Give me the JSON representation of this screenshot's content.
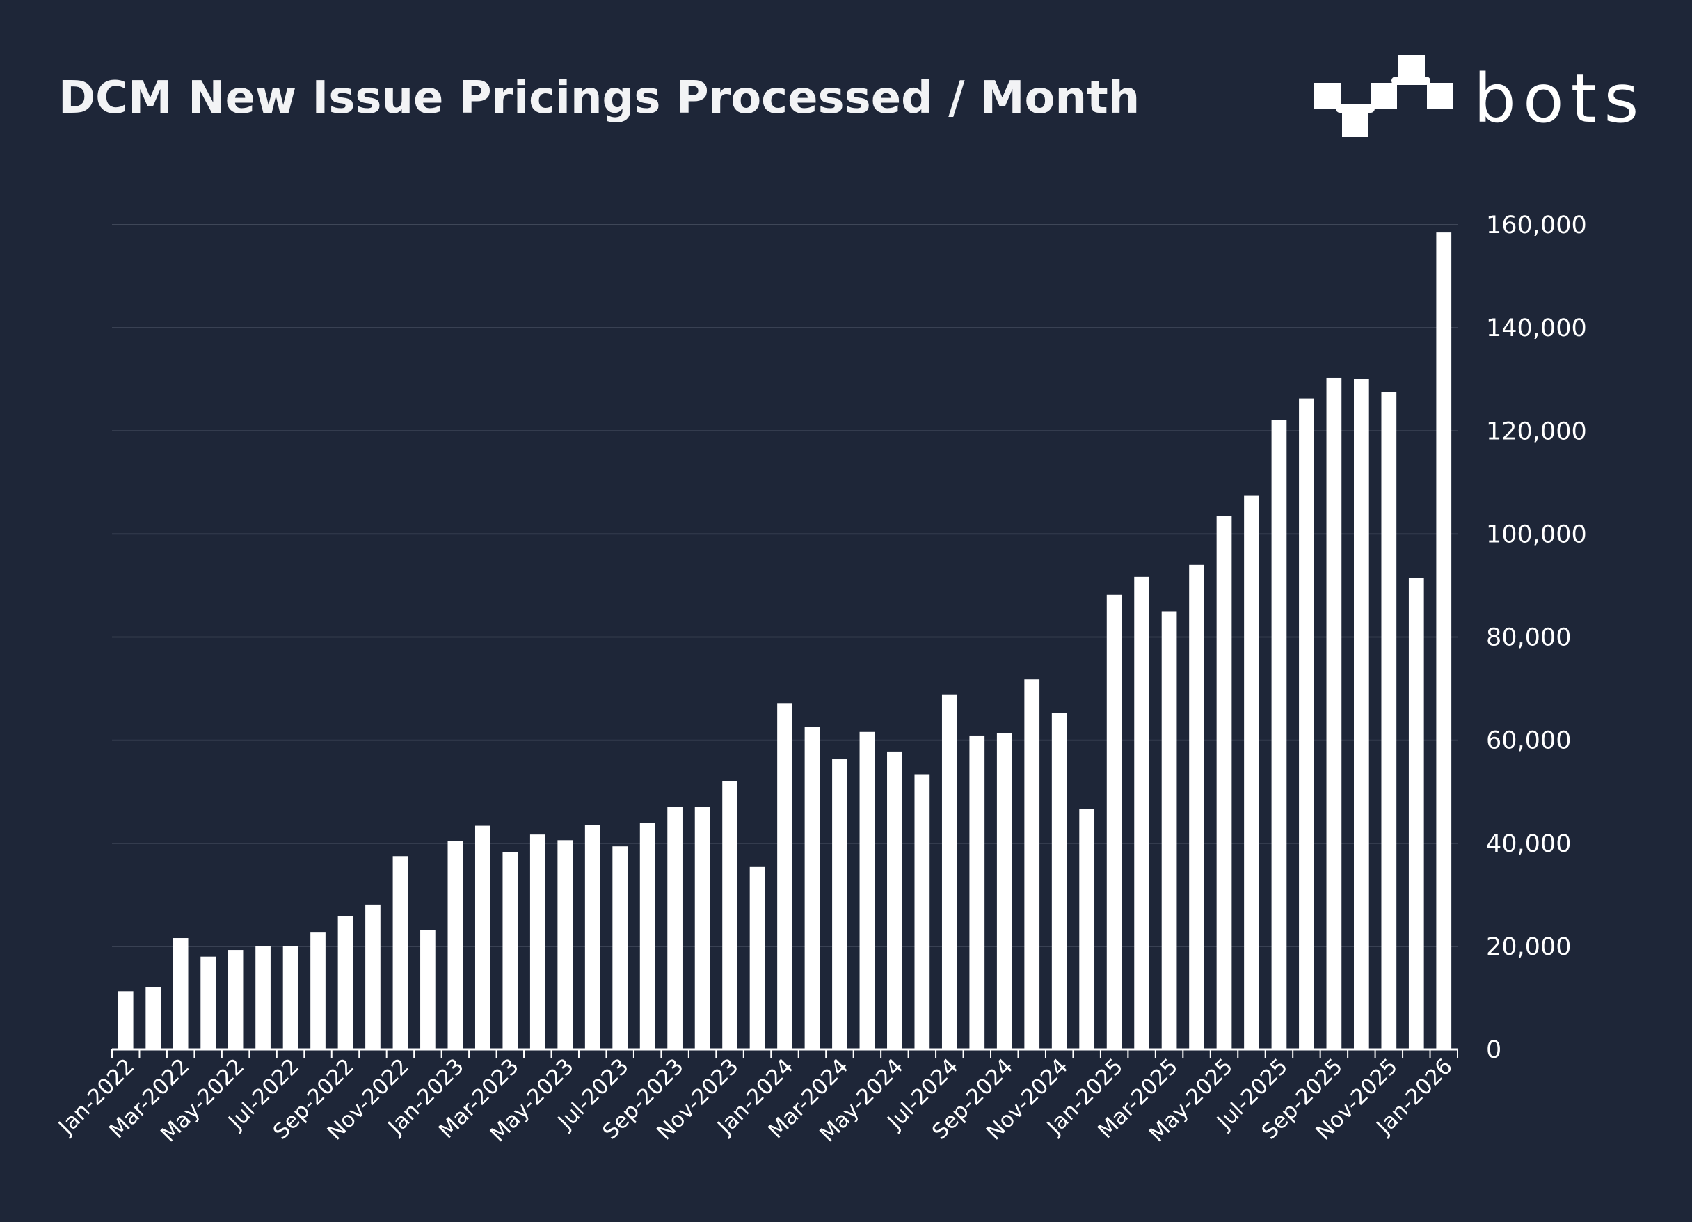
{
  "chart_data": {
    "type": "bar",
    "title": "DCM New Issue Pricings Processed / Month",
    "xlabel": "",
    "ylabel": "",
    "ylim": [
      0,
      160000
    ],
    "yticks": [
      0,
      20000,
      40000,
      60000,
      80000,
      100000,
      120000,
      140000,
      160000
    ],
    "ytick_labels": [
      "0",
      "20,000",
      "40,000",
      "60,000",
      "80,000",
      "100,000",
      "120,000",
      "140,000",
      "160,000"
    ],
    "grid": "horizontal",
    "y_axis_side": "right",
    "bar_color": "#ffffff",
    "background_color": "#1e2638",
    "gridline_color": "#4a5263",
    "categories": [
      "Jan-2022",
      "Feb-2022",
      "Mar-2022",
      "Apr-2022",
      "May-2022",
      "Jun-2022",
      "Jul-2022",
      "Aug-2022",
      "Sep-2022",
      "Oct-2022",
      "Nov-2022",
      "Dec-2022",
      "Jan-2023",
      "Feb-2023",
      "Mar-2023",
      "Apr-2023",
      "May-2023",
      "Jun-2023",
      "Jul-2023",
      "Aug-2023",
      "Sep-2023",
      "Oct-2023",
      "Nov-2023",
      "Dec-2023",
      "Jan-2024",
      "Feb-2024",
      "Mar-2024",
      "Apr-2024",
      "May-2024",
      "Jun-2024",
      "Jul-2024",
      "Aug-2024",
      "Sep-2024",
      "Oct-2024",
      "Nov-2024",
      "Dec-2024",
      "Jan-2025",
      "Feb-2025",
      "Mar-2025",
      "Apr-2025",
      "May-2025",
      "Jun-2025",
      "Jul-2025",
      "Aug-2025",
      "Sep-2025",
      "Oct-2025",
      "Nov-2025",
      "Dec-2025",
      "Jan-2026"
    ],
    "xtick_labels": [
      "Jan-2022",
      "Mar-2022",
      "May-2022",
      "Jul-2022",
      "Sep-2022",
      "Nov-2022",
      "Jan-2023",
      "Mar-2023",
      "May-2023",
      "Jul-2023",
      "Sep-2023",
      "Nov-2023",
      "Jan-2024",
      "Mar-2024",
      "May-2024",
      "Jul-2024",
      "Sep-2024",
      "Nov-2024",
      "Jan-2025",
      "Mar-2025",
      "May-2025",
      "Jul-2025",
      "Sep-2025",
      "Nov-2025",
      "Jan-2026"
    ],
    "values": [
      11300,
      12100,
      21600,
      18000,
      19300,
      20100,
      20100,
      22800,
      25800,
      28100,
      37500,
      23200,
      40400,
      43400,
      38300,
      41700,
      40600,
      43600,
      39400,
      44000,
      47100,
      47100,
      52100,
      35400,
      67200,
      62600,
      56300,
      61600,
      57800,
      53400,
      68900,
      60900,
      61400,
      71800,
      65300,
      46700,
      88200,
      91700,
      85000,
      94000,
      103500,
      107400,
      122100,
      126300,
      130300,
      130100,
      127500,
      91500,
      158500
    ]
  },
  "logo": {
    "text": "bots"
  }
}
